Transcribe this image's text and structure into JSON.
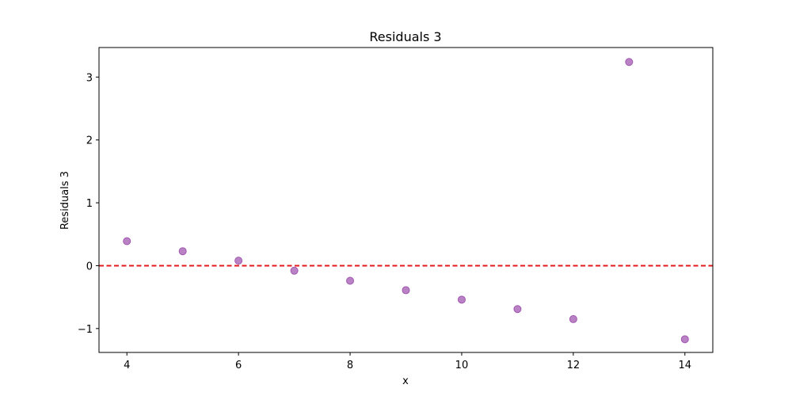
{
  "chart_data": {
    "type": "scatter",
    "title": "Residuals 3",
    "xlabel": "x",
    "ylabel": "Residuals 3",
    "xlim": [
      3.5,
      14.5
    ],
    "ylim": [
      -1.38,
      3.47
    ],
    "xticks": [
      4,
      6,
      8,
      10,
      12,
      14
    ],
    "yticks": [
      -1,
      0,
      1,
      2,
      3
    ],
    "ytick_labels": [
      "−1",
      "0",
      "1",
      "2",
      "3"
    ],
    "grid": false,
    "legend": "none",
    "reference_line": {
      "y": 0,
      "color": "#e31a1c",
      "style": "dashed"
    },
    "series": [
      {
        "color": "#9b4dab",
        "points": [
          {
            "x": 4,
            "y": 0.39
          },
          {
            "x": 5,
            "y": 0.23
          },
          {
            "x": 6,
            "y": 0.08
          },
          {
            "x": 7,
            "y": -0.08
          },
          {
            "x": 8,
            "y": -0.24
          },
          {
            "x": 9,
            "y": -0.39
          },
          {
            "x": 10,
            "y": -0.54
          },
          {
            "x": 11,
            "y": -0.69
          },
          {
            "x": 12,
            "y": -0.85
          },
          {
            "x": 13,
            "y": 3.24
          },
          {
            "x": 14,
            "y": -1.17
          }
        ]
      }
    ]
  }
}
